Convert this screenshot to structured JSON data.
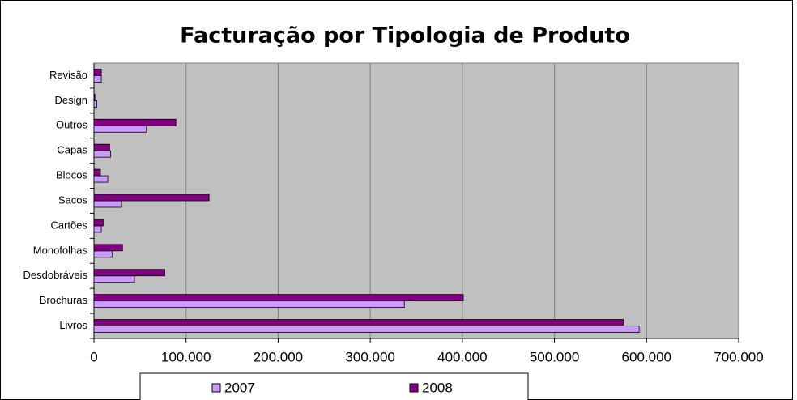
{
  "chart_data": {
    "type": "bar",
    "orientation": "horizontal",
    "title": "Facturação por Tipologia de Produto",
    "categories": [
      "Livros",
      "Brochuras",
      "Desdobráveis",
      "Monofolhas",
      "Cartões",
      "Sacos",
      "Blocos",
      "Capas",
      "Outros",
      "Design",
      "Revisão"
    ],
    "series": [
      {
        "name": "2007",
        "color": "#cc99ff",
        "values": [
          592000,
          337000,
          44000,
          20000,
          8000,
          30000,
          15000,
          18000,
          57000,
          3000,
          8000
        ]
      },
      {
        "name": "2008",
        "color": "#800080",
        "values": [
          575000,
          401000,
          77000,
          31000,
          10000,
          125000,
          7000,
          17000,
          89000,
          1000,
          8000
        ]
      }
    ],
    "xlim": [
      0,
      700000
    ],
    "xticks": [
      0,
      {
        "value": 100000,
        "label": "100.000"
      },
      {
        "value": 200000,
        "label": "200.000"
      },
      {
        "value": 300000,
        "label": "300.000"
      },
      {
        "value": 400000,
        "label": "400.000"
      },
      {
        "value": 500000,
        "label": "500.000"
      },
      {
        "value": 600000,
        "label": "600.000"
      },
      {
        "value": 700000,
        "label": "700.000"
      }
    ],
    "grid": true,
    "legend": "bottom"
  }
}
